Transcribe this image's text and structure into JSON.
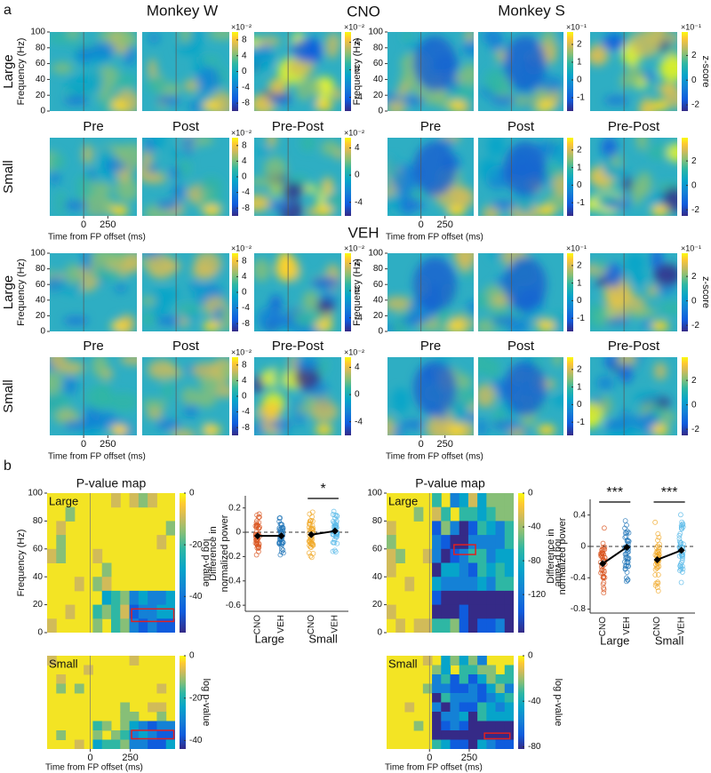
{
  "panel_a": {
    "label": "a",
    "monkeys": [
      "Monkey W",
      "Monkey S"
    ],
    "conditions": [
      "CNO",
      "VEH"
    ],
    "sizes": [
      "Large",
      "Small"
    ],
    "epochs": [
      "Pre",
      "Post",
      "Pre-Post"
    ],
    "y_label": "Frequency (Hz)",
    "x_label": "Time from FP offset (ms)",
    "xlim": [
      -350,
      550
    ],
    "xticks": [
      0,
      250
    ],
    "ylim": [
      0,
      100
    ],
    "yticks": [
      0,
      20,
      40,
      60,
      80,
      100
    ],
    "colorbar_label": "z-score",
    "colorbars": [
      [
        {
          "exponent": "×10⁻²",
          "lim": [
            -10,
            10
          ],
          "ticks": [
            -8,
            -4,
            0,
            4,
            8
          ]
        },
        {
          "exponent": "×10⁻²",
          "lim": [
            -6,
            5.5
          ],
          "ticks": [
            -4,
            0,
            4
          ]
        },
        {
          "exponent": "×10⁻¹",
          "lim": [
            -1.75,
            2.7
          ],
          "ticks": [
            -1,
            0,
            1,
            2
          ]
        },
        {
          "exponent": "×10⁻¹",
          "lim": [
            -2.5,
            3.9
          ],
          "ticks": [
            -2,
            0,
            2
          ],
          "show_label": true
        }
      ],
      [
        {
          "exponent": "×10⁻²",
          "lim": [
            -10,
            10
          ],
          "ticks": [
            -8,
            -4,
            0,
            4,
            8
          ]
        },
        {
          "exponent": "×10⁻²",
          "lim": [
            -6,
            5.5
          ],
          "ticks": [
            -4,
            0,
            4
          ]
        },
        {
          "lim": [
            -1.75,
            2.7
          ],
          "ticks": [
            -1,
            0,
            1,
            2
          ]
        },
        {
          "lim": [
            -2.5,
            3.9
          ],
          "ticks": [
            -2,
            0,
            2
          ]
        }
      ],
      [
        {
          "exponent": "×10⁻²",
          "lim": [
            -10,
            10
          ],
          "ticks": [
            -8,
            -4,
            0,
            4,
            8
          ]
        },
        {
          "exponent": "×10⁻²",
          "lim": [
            -6,
            5.5
          ],
          "ticks": [
            -4,
            0,
            4
          ]
        },
        {
          "exponent": "×10⁻¹",
          "lim": [
            -1.75,
            2.7
          ],
          "ticks": [
            -1,
            0,
            1,
            2
          ]
        },
        {
          "exponent": "×10⁻¹",
          "lim": [
            -2.5,
            3.9
          ],
          "ticks": [
            -2,
            0,
            2
          ],
          "show_label": true
        }
      ],
      [
        {
          "exponent": "×10⁻²",
          "lim": [
            -10,
            10
          ],
          "ticks": [
            -8,
            -4,
            0,
            4,
            8
          ]
        },
        {
          "exponent": "×10⁻²",
          "lim": [
            -6,
            5.5
          ],
          "ticks": [
            -4,
            0,
            4
          ]
        },
        {
          "lim": [
            -1.75,
            2.7
          ],
          "ticks": [
            -1,
            0,
            1,
            2
          ]
        },
        {
          "lim": [
            -2.5,
            3.9
          ],
          "ticks": [
            -2,
            0,
            2
          ]
        }
      ]
    ]
  },
  "panel_b": {
    "label": "b",
    "map_title": "P-value map",
    "y_label": "Frequency (Hz)",
    "x_label": "Time from FP offset (ms)",
    "colorbar_label": "log p-value",
    "ylim": [
      0,
      100
    ],
    "yticks": [
      0,
      20,
      40,
      60,
      80,
      100
    ],
    "xlim": [
      -270,
      530
    ],
    "xticks": [
      0,
      250
    ],
    "sizes": [
      "Large",
      "Small"
    ],
    "conditions": [
      "CNO",
      "VEH"
    ],
    "scatter_y_label": [
      "Difference in",
      "normalized power"
    ],
    "colors": [
      [
        "#d9541e",
        "#1f74b8"
      ],
      [
        "#f0a825",
        "#57b9e8"
      ]
    ],
    "monkeys": [
      {
        "colorbars": [
          {
            "lim": [
              -54,
              0
            ],
            "ticks": [
              -40,
              -20,
              0
            ]
          },
          {
            "lim": [
              -44,
              0
            ],
            "ticks": [
              -40,
              -20,
              0
            ]
          }
        ],
        "scatter": {
          "ylim": [
            -0.65,
            0.3
          ],
          "yticks": [
            -0.6,
            -0.4,
            -0.2,
            0,
            0.2
          ],
          "means": [
            [
              -0.03,
              -0.03
            ],
            [
              -0.02,
              0.01
            ]
          ],
          "stars": [
            null,
            "*"
          ]
        }
      },
      {
        "colorbars": [
          {
            "lim": [
              -165,
              0
            ],
            "ticks": [
              -120,
              -80,
              -40,
              0
            ]
          },
          {
            "lim": [
              -82,
              0
            ],
            "ticks": [
              -80,
              -40,
              0
            ]
          }
        ],
        "scatter": {
          "ylim": [
            -0.85,
            0.6
          ],
          "yticks": [
            -0.8,
            -0.4,
            0,
            0.4
          ],
          "means": [
            [
              -0.22,
              -0.01
            ],
            [
              -0.17,
              -0.05
            ]
          ],
          "stars": [
            "***",
            "***"
          ]
        }
      }
    ]
  }
}
